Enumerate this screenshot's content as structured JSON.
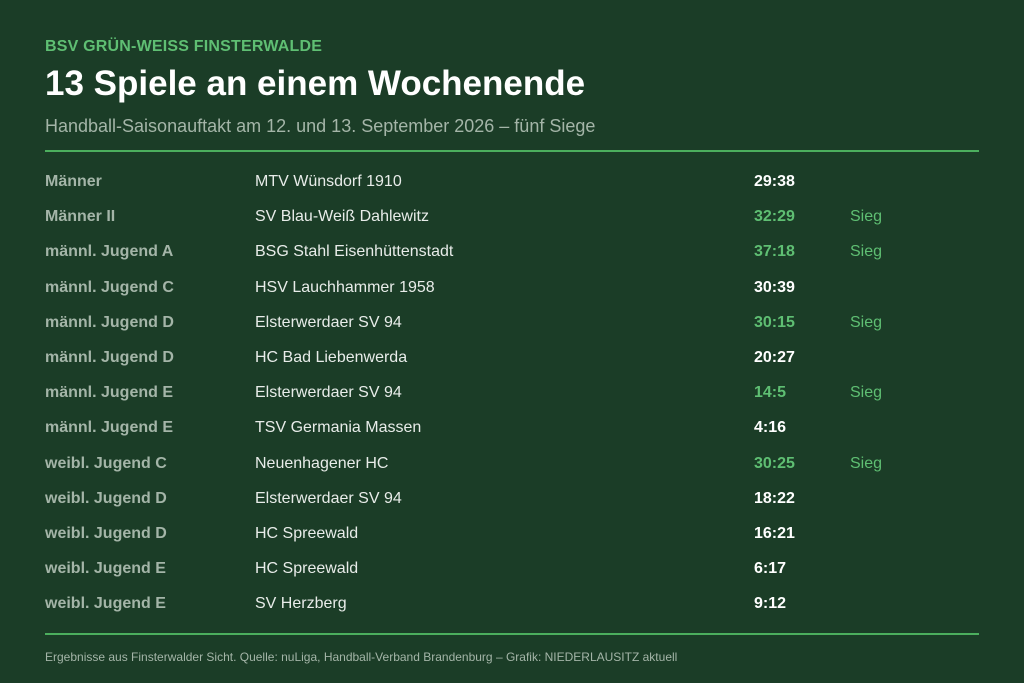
{
  "header": {
    "club": "BSV GRÜN-WEISS FINSTERWALDE",
    "title": "13 Spiele an einem Wochenende",
    "subtitle": "Handball-Saisonauftakt am 12. und 13. September 2026 – fünf Siege"
  },
  "colors": {
    "background": "#1b3d27",
    "accent": "#5fbf73",
    "rule": "#4caf5e",
    "muted": "#a4b5a8"
  },
  "results": [
    {
      "team": "Männer",
      "opponent": "MTV Wünsdorf 1910",
      "score": "29:38",
      "result": ""
    },
    {
      "team": "Männer II",
      "opponent": "SV Blau-Weiß Dahlewitz",
      "score": "32:29",
      "result": "Sieg"
    },
    {
      "team": "männl. Jugend A",
      "opponent": "BSG Stahl Eisenhüttenstadt",
      "score": "37:18",
      "result": "Sieg"
    },
    {
      "team": "männl. Jugend C",
      "opponent": "HSV Lauchhammer 1958",
      "score": "30:39",
      "result": ""
    },
    {
      "team": "männl. Jugend D",
      "opponent": "Elsterwerdaer SV 94",
      "score": "30:15",
      "result": "Sieg"
    },
    {
      "team": "männl. Jugend D",
      "opponent": "HC Bad Liebenwerda",
      "score": "20:27",
      "result": ""
    },
    {
      "team": "männl. Jugend E",
      "opponent": "Elsterwerdaer SV 94",
      "score": "14:5",
      "result": "Sieg"
    },
    {
      "team": "männl. Jugend E",
      "opponent": "TSV Germania Massen",
      "score": "4:16",
      "result": ""
    },
    {
      "team": "weibl. Jugend C",
      "opponent": "Neuenhagener HC",
      "score": "30:25",
      "result": "Sieg"
    },
    {
      "team": "weibl. Jugend D",
      "opponent": "Elsterwerdaer SV 94",
      "score": "18:22",
      "result": ""
    },
    {
      "team": "weibl. Jugend D",
      "opponent": "HC Spreewald",
      "score": "16:21",
      "result": ""
    },
    {
      "team": "weibl. Jugend E",
      "opponent": "HC Spreewald",
      "score": "6:17",
      "result": ""
    },
    {
      "team": "weibl. Jugend E",
      "opponent": "SV Herzberg",
      "score": "9:12",
      "result": ""
    }
  ],
  "footer": {
    "text": "Ergebnisse aus Finsterwalder Sicht. Quelle: nuLiga, Handball-Verband Brandenburg – Grafik: NIEDERLAUSITZ aktuell"
  }
}
